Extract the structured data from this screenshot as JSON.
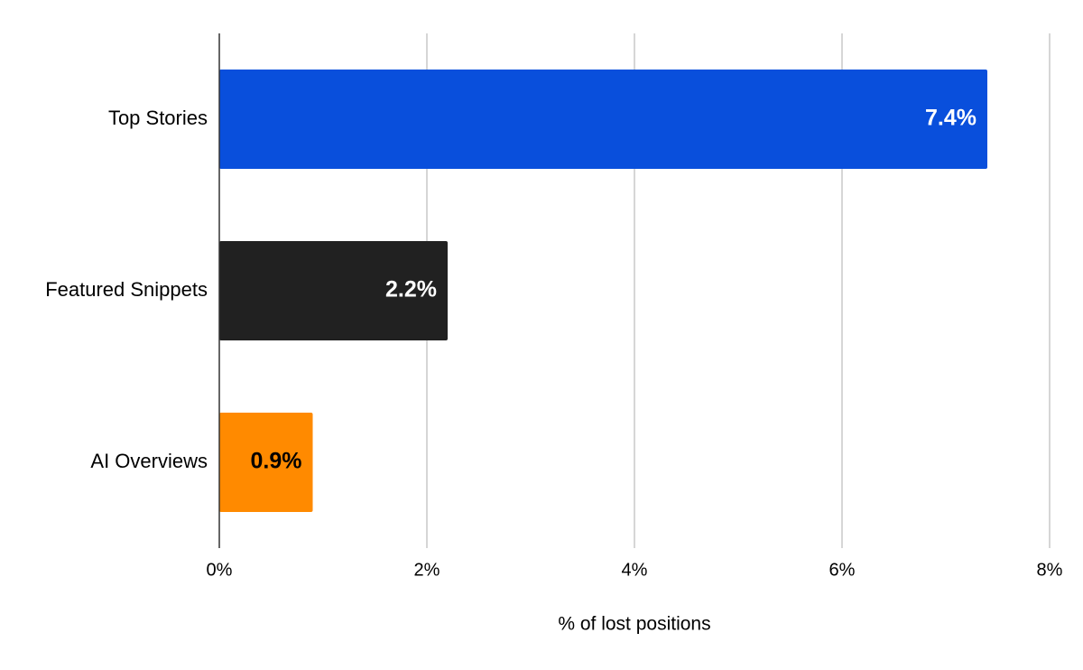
{
  "chart_data": {
    "type": "bar",
    "orientation": "horizontal",
    "categories": [
      "Top Stories",
      "Featured Snippets",
      "AI Overviews"
    ],
    "values": [
      7.4,
      2.2,
      0.9
    ],
    "value_labels": [
      "7.4%",
      "2.2%",
      "0.9%"
    ],
    "colors": [
      "#094fdc",
      "#212121",
      "#ff8a00"
    ],
    "value_label_colors": [
      "#ffffff",
      "#ffffff",
      "#000000"
    ],
    "xlabel": "% of lost positions",
    "xlim": [
      0,
      8
    ],
    "xticks": [
      {
        "value": 0,
        "label": "0%"
      },
      {
        "value": 2,
        "label": "2%"
      },
      {
        "value": 4,
        "label": "4%"
      },
      {
        "value": 6,
        "label": "6%"
      },
      {
        "value": 8,
        "label": "8%"
      }
    ],
    "grid": true
  }
}
